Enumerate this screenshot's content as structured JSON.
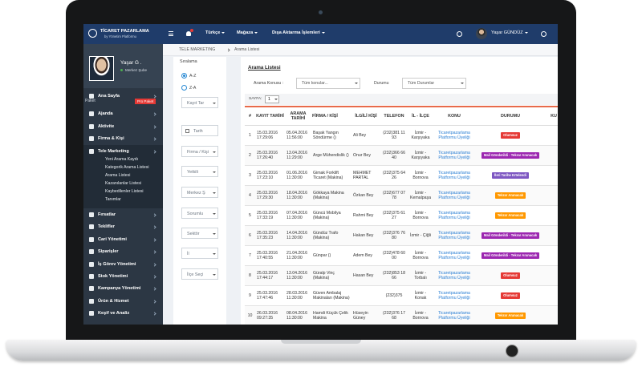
{
  "header": {
    "logo_title": "TİCARET PAZARLAMA",
    "logo_subtitle": "by Yönetim Platformu",
    "nav": [
      "Türkçe",
      "Mağaza",
      "Dışa Aktarma İşlemleri"
    ],
    "user": "Yaşar GÜNDÜZ"
  },
  "sidebar": {
    "profile_name": "Yaşar G .",
    "profile_status": "Merkez Şube",
    "menu_a": [
      "Ana Sayfa"
    ],
    "package_label": "Paket",
    "package_badge": "Pro Paket",
    "menu_b": [
      "Ajanda",
      "Aktivite",
      "Firma & Kişi",
      "Tele Marketing"
    ],
    "submenu": [
      "Yeni Arama Kaydı",
      "Kategorik Arama Listesi",
      "Arama Listesi",
      "Kazanılanlar Listesi",
      "Kaybedilenler Listesi",
      "Tanımlar"
    ],
    "menu_c": [
      "Fırsatlar",
      "Teklifler",
      "Cari Yönetimi",
      "Siparişler",
      "İş Görev Yönetimi",
      "Stok Yönetimi",
      "Kampanya Yönetimi",
      "Ürün & Hizmet",
      "Keşif ve Analiz"
    ]
  },
  "breadcrumb": [
    "TELE MARKETING",
    "Arama Listesi"
  ],
  "filters": {
    "sort_label": "Sıralama",
    "sort_options": [
      "A-Z",
      "Z-A"
    ],
    "fields": [
      "Kayıt Tar",
      "Tarih",
      "Firma / Kişi",
      "Yetkili",
      "Merkez Ş",
      "Sorumlu",
      "Sektör",
      "İl",
      "İlçe Seçi"
    ]
  },
  "main": {
    "title": "Arama Listesi",
    "topic_label": "Arama Konusu :",
    "topic_value": "Tüm konular...",
    "status_label": "Durumu",
    "status_value": "Tüm Durumlar",
    "page_label": "SAYFA:",
    "page_value": "1"
  },
  "table": {
    "columns": [
      "#",
      "KAYIT TARİHİ",
      "ARAMA TARİHİ",
      "FİRMA / KİŞİ",
      "İLGİLİ KİŞİ",
      "TELEFON",
      "İL - İLÇE",
      "KONU",
      "DURUMU",
      "KU"
    ],
    "rows": [
      {
        "no": 1,
        "kayit": "15.03.2016 17:29:06",
        "arama": "05.04.2016 11:56:00",
        "firma": "Başak Yangın Söndürme ()",
        "ilgili": "Ali Bey",
        "telefon": "(232)381 11 93",
        "il": "İzmir - Karşıyaka",
        "konu": "Ticaretpazarlama Platformu Üyeliği",
        "durum": "Olumsuz",
        "color": "#e53935"
      },
      {
        "no": 2,
        "kayit": "25.03.2016 17:26:40",
        "arama": "13.04.2016 11:29:00",
        "firma": "Arge Mühendislik ()",
        "ilgili": "Onur Bey",
        "telefon": "(232)366 66 40",
        "il": "İzmir - Karşıyaka",
        "konu": "Ticaretpazarlama Platformu Üyeliği",
        "durum": "Mail Gönderildi - Tekrar Aranacak",
        "color": "#9c27b0"
      },
      {
        "no": 3,
        "kayit": "25.03.2016 17:23:10",
        "arama": "01.06.2016 11:30:00",
        "firma": "Gimak Forklift Ticaret (Makina)",
        "ilgili": "MEHMET PARTAL",
        "telefon": "(232)375 64 26",
        "il": "İzmir - Bornova",
        "konu": "Ticaretpazarlama Platformu Üyeliği",
        "durum": "İleri Tarihe Ertelendi",
        "color": "#7e57c2"
      },
      {
        "no": 4,
        "kayit": "25.03.2016 17:29:30",
        "arama": "18.04.2016 11:30:00",
        "firma": "Gökkaya Makina (Makina)",
        "ilgili": "Özkan Bey",
        "telefon": "(232)677 07 78",
        "il": "İzmir - Kemalpaşa",
        "konu": "Ticaretpazarlama Platformu Üyeliği",
        "durum": "Tekrar Aranacak",
        "color": "#ff9800"
      },
      {
        "no": 5,
        "kayit": "25.03.2016 17:33:19",
        "arama": "07.04.2016 11:30:00",
        "firma": "Güncü Mobilya (Makina)",
        "ilgili": "Rahmi Bey",
        "telefon": "(232)375 61 27",
        "il": "İzmir - Bornova",
        "konu": "Ticaretpazarlama Platformu Üyeliği",
        "durum": "Tekrar Aranacak",
        "color": "#ff9800"
      },
      {
        "no": 6,
        "kayit": "25.03.2016 17:35:23",
        "arama": "14.04.2016 11:30:00",
        "firma": "Gündüz Trafo (Makina)",
        "ilgili": "Hakan Bey",
        "telefon": "(232)376 76 80",
        "il": "İzmir - Çiğli",
        "konu": "Ticaretpazarlama Platformu Üyeliği",
        "durum": "Mail Gönderildi - Tekrar Aranacak",
        "color": "#9c27b0"
      },
      {
        "no": 7,
        "kayit": "25.03.2016 17:40:55",
        "arama": "21.04.2016 11:30:00",
        "firma": "Günpar ()",
        "ilgili": "Adem Bey",
        "telefon": "(232)478 60 00",
        "il": "İzmir - Bornova",
        "konu": "Ticaretpazarlama Platformu Üyeliği",
        "durum": "Mail Gönderildi - Tekrar Aranacak",
        "color": "#9c27b0"
      },
      {
        "no": 8,
        "kayit": "25.03.2016 17:44:17",
        "arama": "13.04.2016 11:30:00",
        "firma": "Güralp Vinç (Makina)",
        "ilgili": "Hasan Bey",
        "telefon": "(232)853 18 66",
        "il": "İzmir - Torbalı",
        "konu": "Ticaretpazarlama Platformu Üyeliği",
        "durum": "Olumsuz",
        "color": "#e53935"
      },
      {
        "no": 9,
        "kayit": "25.03.2016 17:47:46",
        "arama": "28.03.2016 11:30:00",
        "firma": "Güven Ambalaj Makinaları (Makina)",
        "ilgili": null,
        "telefon": "(232)375",
        "il": "İzmir - Konak",
        "konu": "Ticaretpazarlama Platformu Üyeliği",
        "durum": "Olumsuz",
        "color": "#e53935"
      },
      {
        "no": 10,
        "kayit": "26.03.2016 09:27:35",
        "arama": "08.04.2016 11:30:00",
        "firma": "Hamdi Küçük Çelik Makina",
        "ilgili": "Hüseyin Güney",
        "telefon": "(232)376 17 68",
        "il": "İzmir - Bornova",
        "konu": "Ticaretpazarlama Platformu Üyeliği",
        "durum": "Tekrar Aranacak",
        "color": "#ff9800"
      }
    ]
  }
}
